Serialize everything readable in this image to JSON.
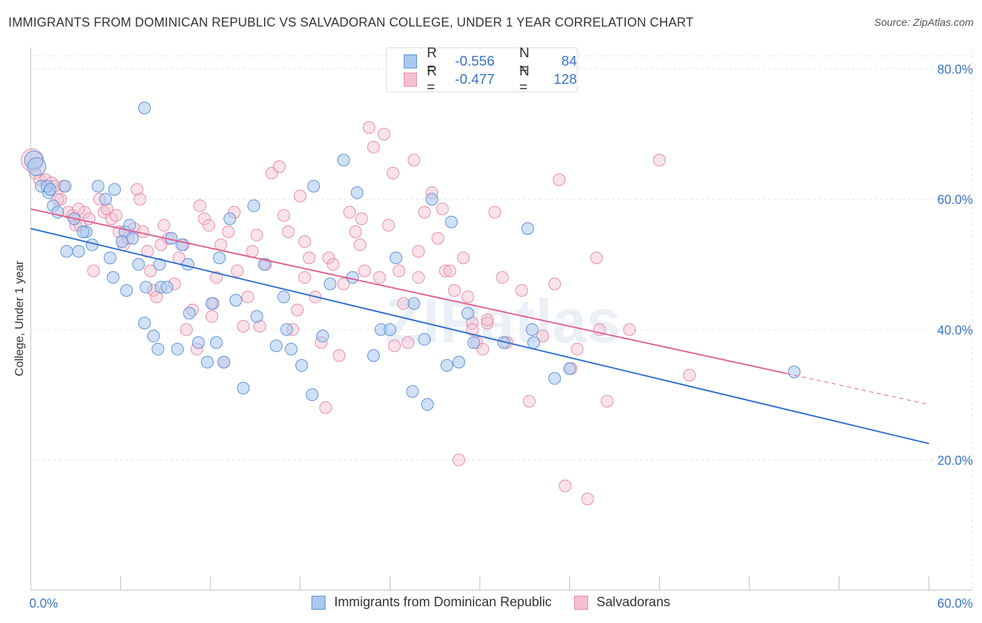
{
  "title": "IMMIGRANTS FROM DOMINICAN REPUBLIC VS SALVADORAN COLLEGE, UNDER 1 YEAR CORRELATION CHART",
  "source": "Source: ZipAtlas.com",
  "watermark": "ZIPatlas",
  "legend": {
    "rows": [
      {
        "r_label": "R =",
        "r_value": "-0.556",
        "n_label": "N =",
        "n_value": "84"
      },
      {
        "r_label": "R =",
        "r_value": "-0.477",
        "n_label": "N =",
        "n_value": "128"
      }
    ]
  },
  "bottom_legend": {
    "series1": "Immigrants from Dominican Republic",
    "series2": "Salvadorans"
  },
  "chart_data": {
    "type": "scatter",
    "title": "IMMIGRANTS FROM DOMINICAN REPUBLIC VS SALVADORAN COLLEGE, UNDER 1 YEAR CORRELATION CHART",
    "xlabel": "",
    "ylabel": "College, Under 1 year",
    "xlim": [
      0,
      60
    ],
    "ylim": [
      0,
      82
    ],
    "x_tick_labels": [
      "0.0%",
      "60.0%"
    ],
    "y_ticks": [
      20,
      40,
      60,
      80
    ],
    "y_tick_labels": [
      "20.0%",
      "40.0%",
      "60.0%",
      "80.0%"
    ],
    "colors": {
      "series1_fill": "#aac8ef",
      "series1_stroke": "#5a8fd6",
      "series1_line": "#2e6fd0",
      "series2_fill": "#f5bfd0",
      "series2_stroke": "#e58aa8",
      "series2_line": "#e0608c",
      "value_text": "#3b74c9",
      "grid": "#e2e2e2"
    },
    "series": [
      {
        "name": "Immigrants from Dominican Republic",
        "trend": {
          "x0": 0,
          "y0": 55.5,
          "x1": 60,
          "y1": 22.5,
          "solid_to": 60
        },
        "points": [
          [
            0.2,
            66
          ],
          [
            0.4,
            65
          ],
          [
            0.7,
            62
          ],
          [
            1.2,
            61
          ],
          [
            1.5,
            59
          ],
          [
            1.8,
            58
          ],
          [
            2.3,
            62
          ],
          [
            2.9,
            57
          ],
          [
            3.7,
            55
          ],
          [
            1.1,
            62
          ],
          [
            1.3,
            61.5
          ],
          [
            2.4,
            52
          ],
          [
            3.2,
            52
          ],
          [
            3.5,
            55
          ],
          [
            4.1,
            53
          ],
          [
            4.5,
            62
          ],
          [
            5.0,
            60
          ],
          [
            5.6,
            61.5
          ],
          [
            5.3,
            51
          ],
          [
            5.5,
            48
          ],
          [
            6.3,
            55
          ],
          [
            6.6,
            56
          ],
          [
            6.4,
            46
          ],
          [
            6.8,
            54
          ],
          [
            7.6,
            74
          ],
          [
            7.2,
            50
          ],
          [
            7.6,
            41
          ],
          [
            8.2,
            39
          ],
          [
            8.7,
            46.5
          ],
          [
            9.1,
            46.5
          ],
          [
            8.5,
            37
          ],
          [
            8.6,
            50
          ],
          [
            9.4,
            54
          ],
          [
            10.1,
            53
          ],
          [
            9.8,
            37
          ],
          [
            10.6,
            42.5
          ],
          [
            10.5,
            50
          ],
          [
            11.2,
            38
          ],
          [
            11.8,
            35
          ],
          [
            12.1,
            44
          ],
          [
            12.4,
            38
          ],
          [
            12.6,
            51
          ],
          [
            12.9,
            35
          ],
          [
            13.3,
            57
          ],
          [
            13.7,
            44.5
          ],
          [
            14.2,
            31
          ],
          [
            14.9,
            59
          ],
          [
            15.1,
            42
          ],
          [
            15.6,
            50
          ],
          [
            16.4,
            37.5
          ],
          [
            16.9,
            45
          ],
          [
            17.1,
            40
          ],
          [
            17.4,
            37
          ],
          [
            18.1,
            34.5
          ],
          [
            18.8,
            30
          ],
          [
            18.9,
            62
          ],
          [
            19.5,
            39
          ],
          [
            20.0,
            47
          ],
          [
            20.9,
            66
          ],
          [
            21.5,
            48
          ],
          [
            21.8,
            61
          ],
          [
            22.9,
            36
          ],
          [
            23.4,
            40
          ],
          [
            24.0,
            40
          ],
          [
            24.4,
            51
          ],
          [
            25.6,
            44
          ],
          [
            25.5,
            30.5
          ],
          [
            26.3,
            38.5
          ],
          [
            26.5,
            28.5
          ],
          [
            26.8,
            60
          ],
          [
            27.8,
            34.5
          ],
          [
            28.1,
            56.5
          ],
          [
            28.6,
            35
          ],
          [
            29.2,
            42.5
          ],
          [
            29.6,
            38
          ],
          [
            31.6,
            38
          ],
          [
            33.2,
            55.5
          ],
          [
            33.5,
            40
          ],
          [
            33.6,
            38
          ],
          [
            35.0,
            32.5
          ],
          [
            36.0,
            34
          ],
          [
            51.0,
            33.5
          ],
          [
            6.1,
            53.5
          ],
          [
            7.7,
            46.5
          ]
        ]
      },
      {
        "name": "Salvadorans",
        "trend": {
          "x0": 0,
          "y0": 58.5,
          "x1": 60,
          "y1": 28.5,
          "solid_to": 50.5
        },
        "points": [
          [
            0.1,
            66
          ],
          [
            0.3,
            64
          ],
          [
            0.6,
            63
          ],
          [
            1.0,
            63
          ],
          [
            1.4,
            62.5
          ],
          [
            1.6,
            62
          ],
          [
            2.0,
            60
          ],
          [
            2.5,
            58
          ],
          [
            2.8,
            57.5
          ],
          [
            3.0,
            56
          ],
          [
            3.3,
            56
          ],
          [
            3.6,
            58
          ],
          [
            3.9,
            57
          ],
          [
            4.2,
            49
          ],
          [
            4.6,
            60
          ],
          [
            4.9,
            58
          ],
          [
            5.1,
            58.5
          ],
          [
            5.4,
            57
          ],
          [
            5.7,
            57.5
          ],
          [
            5.9,
            55
          ],
          [
            6.2,
            53
          ],
          [
            6.5,
            54
          ],
          [
            6.9,
            55.5
          ],
          [
            7.1,
            61.5
          ],
          [
            7.3,
            60
          ],
          [
            7.5,
            55
          ],
          [
            7.8,
            52
          ],
          [
            8.0,
            49
          ],
          [
            8.2,
            46
          ],
          [
            8.4,
            45
          ],
          [
            8.7,
            53
          ],
          [
            8.9,
            56
          ],
          [
            9.2,
            54
          ],
          [
            9.6,
            47
          ],
          [
            9.9,
            51
          ],
          [
            10.2,
            53
          ],
          [
            10.4,
            40
          ],
          [
            10.8,
            43
          ],
          [
            11.1,
            37
          ],
          [
            11.3,
            59
          ],
          [
            11.6,
            57
          ],
          [
            11.9,
            56
          ],
          [
            12.2,
            44
          ],
          [
            12.4,
            48
          ],
          [
            12.7,
            53
          ],
          [
            12.9,
            35
          ],
          [
            13.2,
            55
          ],
          [
            13.6,
            58
          ],
          [
            13.8,
            49
          ],
          [
            14.2,
            40.5
          ],
          [
            14.5,
            45
          ],
          [
            14.8,
            52
          ],
          [
            15.1,
            54.5
          ],
          [
            15.3,
            40.5
          ],
          [
            15.7,
            50
          ],
          [
            16.1,
            64
          ],
          [
            16.6,
            65
          ],
          [
            16.9,
            57.5
          ],
          [
            17.2,
            55
          ],
          [
            17.5,
            40
          ],
          [
            17.8,
            43
          ],
          [
            18.0,
            60.5
          ],
          [
            18.3,
            53.5
          ],
          [
            18.6,
            51
          ],
          [
            19.0,
            45
          ],
          [
            19.4,
            38
          ],
          [
            19.7,
            28
          ],
          [
            19.9,
            51
          ],
          [
            20.2,
            50
          ],
          [
            20.6,
            36
          ],
          [
            20.9,
            47
          ],
          [
            21.3,
            58
          ],
          [
            21.7,
            55
          ],
          [
            22.0,
            53
          ],
          [
            22.3,
            49
          ],
          [
            22.6,
            71
          ],
          [
            22.9,
            68
          ],
          [
            23.3,
            48
          ],
          [
            23.6,
            70
          ],
          [
            23.9,
            56
          ],
          [
            24.2,
            64
          ],
          [
            24.6,
            49
          ],
          [
            24.9,
            44
          ],
          [
            25.2,
            38
          ],
          [
            25.6,
            66
          ],
          [
            25.9,
            48
          ],
          [
            26.3,
            58
          ],
          [
            26.8,
            61
          ],
          [
            27.2,
            54
          ],
          [
            27.5,
            58.5
          ],
          [
            27.7,
            49
          ],
          [
            28.0,
            49
          ],
          [
            28.3,
            46
          ],
          [
            28.6,
            20
          ],
          [
            28.9,
            51
          ],
          [
            29.2,
            45
          ],
          [
            29.5,
            41
          ],
          [
            29.8,
            38
          ],
          [
            30.2,
            37
          ],
          [
            30.5,
            41
          ],
          [
            31.0,
            58
          ],
          [
            31.5,
            48
          ],
          [
            31.8,
            38
          ],
          [
            32.8,
            46
          ],
          [
            33.3,
            29
          ],
          [
            34.2,
            39
          ],
          [
            35.0,
            47
          ],
          [
            35.3,
            63
          ],
          [
            35.7,
            16
          ],
          [
            36.1,
            34
          ],
          [
            37.2,
            14
          ],
          [
            37.8,
            51
          ],
          [
            38.5,
            29
          ],
          [
            40.0,
            40
          ],
          [
            42.0,
            66
          ],
          [
            44.0,
            33
          ],
          [
            38.0,
            40
          ],
          [
            3.2,
            58.5
          ],
          [
            1.8,
            60
          ],
          [
            2.2,
            62
          ],
          [
            12.1,
            42
          ],
          [
            18.3,
            48
          ],
          [
            25.9,
            52
          ],
          [
            29.5,
            40
          ],
          [
            30.5,
            41.5
          ],
          [
            36.5,
            37
          ],
          [
            24.3,
            37.5
          ],
          [
            22.1,
            57
          ]
        ]
      }
    ]
  }
}
